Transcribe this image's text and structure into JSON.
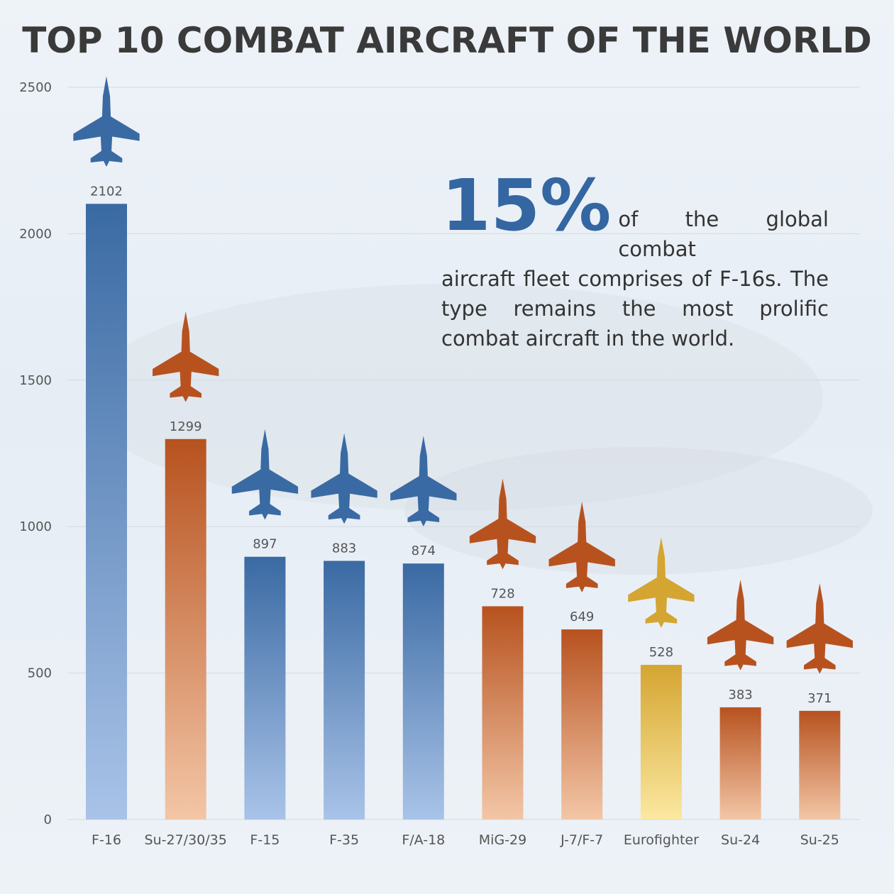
{
  "chart_data": {
    "type": "bar",
    "title": "TOP 10 COMBAT AIRCRAFT OF THE WORLD",
    "categories": [
      "F-16",
      "Su-27/30/35",
      "F-15",
      "F-35",
      "F/A-18",
      "MiG-29",
      "J-7/F-7",
      "Eurofighter",
      "Su-24",
      "Su-25"
    ],
    "values": [
      2102,
      1299,
      897,
      883,
      874,
      728,
      649,
      528,
      383,
      371
    ],
    "colors": [
      "blue",
      "orange",
      "blue",
      "blue",
      "blue",
      "orange",
      "orange",
      "gold",
      "orange",
      "orange"
    ],
    "ylim": [
      0,
      2500
    ],
    "yticks": [
      0,
      500,
      1000,
      1500,
      2000,
      2500
    ],
    "grid": true,
    "data_labels": true
  },
  "palette": {
    "blue_top": "#3a6aa3",
    "blue_bottom": "#a9c3e8",
    "orange_top": "#b7521f",
    "orange_bottom": "#f3c6a6",
    "gold_top": "#d4a531",
    "gold_bottom": "#fbe8a0",
    "title_color": "#3a3a3a",
    "accent": "#3466a1"
  },
  "callout": {
    "big": "15%",
    "line_first": "of the global combat",
    "line_rest": "aircraft fleet comprises of F-16s. The type remains the most prolific combat aircraft in the world."
  }
}
